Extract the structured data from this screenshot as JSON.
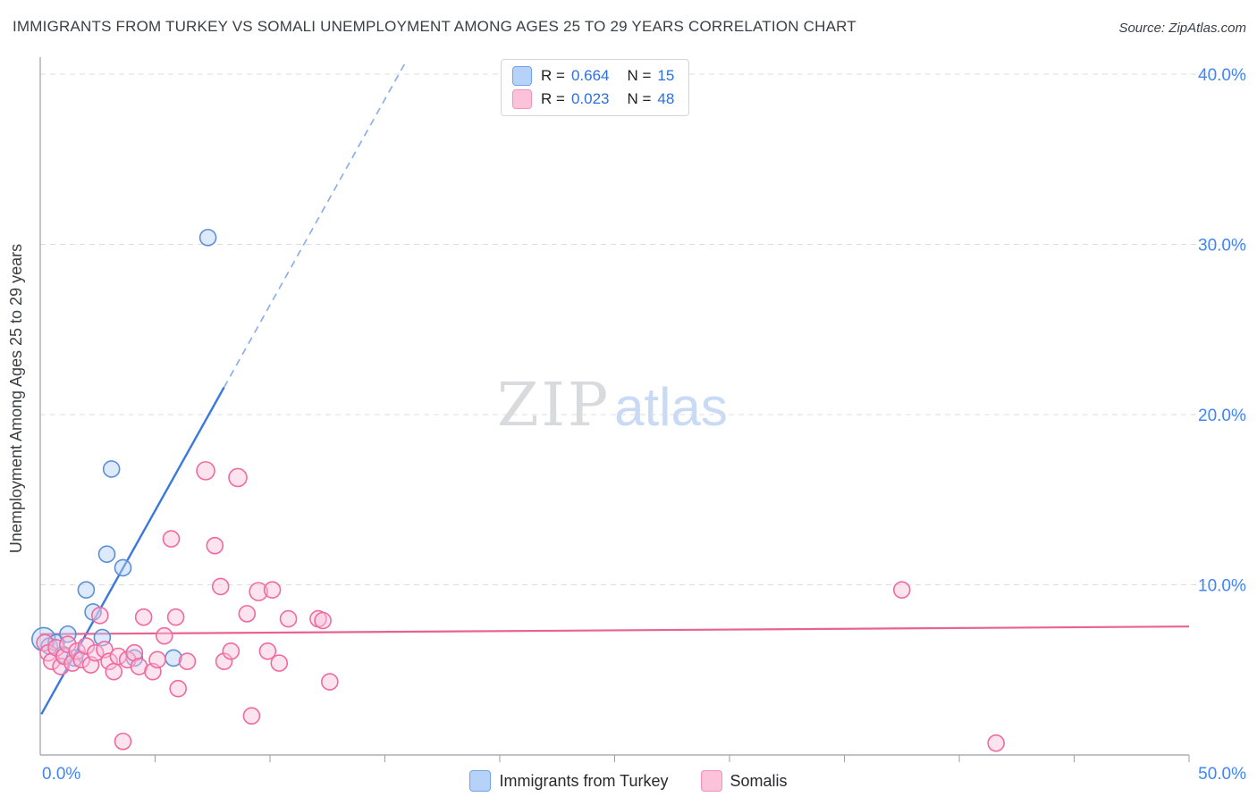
{
  "header": {
    "title": "IMMIGRANTS FROM TURKEY VS SOMALI UNEMPLOYMENT AMONG AGES 25 TO 29 YEARS CORRELATION CHART",
    "source": "Source: ZipAtlas.com"
  },
  "watermark": {
    "zip": "ZIP",
    "atlas": "atlas"
  },
  "axes": {
    "y_label": "Unemployment Among Ages 25 to 29 years"
  },
  "legend_box": {
    "rows": [
      {
        "r_label": "R =",
        "r_value": "0.664",
        "n_label": "N =",
        "n_value": "15"
      },
      {
        "r_label": "R =",
        "r_value": "0.023",
        "n_label": "N =",
        "n_value": "48"
      }
    ]
  },
  "bottom_legend": {
    "items": [
      {
        "label": "Immigrants from Turkey"
      },
      {
        "label": "Somalis"
      }
    ]
  },
  "colors": {
    "accent_blue": "#4285f4",
    "turkey_fill": "#b3d1f8",
    "turkey_stroke": "#5b8fd6",
    "somali_fill": "#fbc2d9",
    "somali_stroke": "#f06a9f",
    "turkey_trend": "#3b78de",
    "turkey_trend_dashed": "#8cb0e8",
    "somali_trend": "#e8638f",
    "grid": "#dcdcdc",
    "axis": "#9aa0a6"
  },
  "chart_data": {
    "type": "scatter",
    "title": "IMMIGRANTS FROM TURKEY VS SOMALI UNEMPLOYMENT AMONG AGES 25 TO 29 YEARS CORRELATION CHART",
    "xlabel": "",
    "ylabel": "Unemployment Among Ages 25 to 29 years",
    "xlim": [
      0,
      50
    ],
    "ylim": [
      0,
      42
    ],
    "grid": "horizontal-dashed",
    "legend_position": "bottom-center",
    "x_ticks": [
      {
        "value": 0,
        "label": "0.0%"
      },
      {
        "value": 50,
        "label": "50.0%"
      }
    ],
    "y_ticks": [
      {
        "value": 10,
        "label": "10.0%"
      },
      {
        "value": 20,
        "label": "20.0%"
      },
      {
        "value": 30,
        "label": "30.0%"
      },
      {
        "value": 40,
        "label": "40.0%"
      }
    ],
    "series": [
      {
        "name": "Immigrants from Turkey",
        "R": 0.664,
        "N": 15,
        "units": "percent",
        "points": [
          [
            0.15,
            6.8,
            13
          ],
          [
            0.4,
            6.4
          ],
          [
            0.7,
            6.6
          ],
          [
            1.0,
            5.9
          ],
          [
            1.2,
            7.1
          ],
          [
            1.5,
            5.7
          ],
          [
            2.0,
            9.7
          ],
          [
            2.3,
            8.4
          ],
          [
            2.7,
            6.9
          ],
          [
            2.9,
            11.8
          ],
          [
            3.1,
            16.8
          ],
          [
            3.6,
            11.0
          ],
          [
            4.1,
            5.7
          ],
          [
            5.8,
            5.7
          ],
          [
            7.3,
            30.4
          ]
        ]
      },
      {
        "name": "Somalis",
        "R": 0.023,
        "N": 48,
        "units": "percent",
        "points": [
          [
            0.2,
            6.6
          ],
          [
            0.35,
            6.0
          ],
          [
            0.5,
            5.5
          ],
          [
            0.7,
            6.3
          ],
          [
            0.9,
            5.2
          ],
          [
            1.05,
            5.8
          ],
          [
            1.2,
            6.5
          ],
          [
            1.4,
            5.4
          ],
          [
            1.6,
            6.1
          ],
          [
            1.8,
            5.6
          ],
          [
            2.0,
            6.4
          ],
          [
            2.2,
            5.3
          ],
          [
            2.4,
            6.0
          ],
          [
            2.6,
            8.2
          ],
          [
            2.8,
            6.2
          ],
          [
            3.0,
            5.5
          ],
          [
            3.2,
            4.9
          ],
          [
            3.4,
            5.8
          ],
          [
            3.6,
            0.8
          ],
          [
            3.8,
            5.6
          ],
          [
            4.1,
            6.0
          ],
          [
            4.3,
            5.2
          ],
          [
            4.5,
            8.1
          ],
          [
            4.9,
            4.9
          ],
          [
            5.1,
            5.6
          ],
          [
            5.4,
            7.0
          ],
          [
            5.7,
            12.7
          ],
          [
            5.9,
            8.1
          ],
          [
            6.0,
            3.9
          ],
          [
            6.4,
            5.5
          ],
          [
            7.2,
            16.7,
            10
          ],
          [
            7.6,
            12.3
          ],
          [
            7.85,
            9.9
          ],
          [
            8.0,
            5.5
          ],
          [
            8.3,
            6.1
          ],
          [
            8.6,
            16.3,
            10
          ],
          [
            9.0,
            8.3
          ],
          [
            9.2,
            2.3
          ],
          [
            9.5,
            9.6,
            10
          ],
          [
            9.9,
            6.1
          ],
          [
            10.1,
            9.7
          ],
          [
            10.4,
            5.4
          ],
          [
            10.8,
            8.0
          ],
          [
            12.1,
            8.0
          ],
          [
            12.3,
            7.9
          ],
          [
            12.6,
            4.3
          ],
          [
            37.5,
            9.7
          ],
          [
            41.6,
            0.7
          ]
        ]
      }
    ],
    "trend_lines": [
      {
        "series": "Immigrants from Turkey",
        "solid": [
          [
            0.05,
            2.4
          ],
          [
            8.0,
            21.6
          ]
        ],
        "dashed": [
          [
            8.0,
            21.6
          ],
          [
            15.9,
            40.7
          ]
        ]
      },
      {
        "series": "Somalis",
        "solid": [
          [
            0,
            7.1
          ],
          [
            50,
            7.55
          ]
        ]
      }
    ]
  }
}
